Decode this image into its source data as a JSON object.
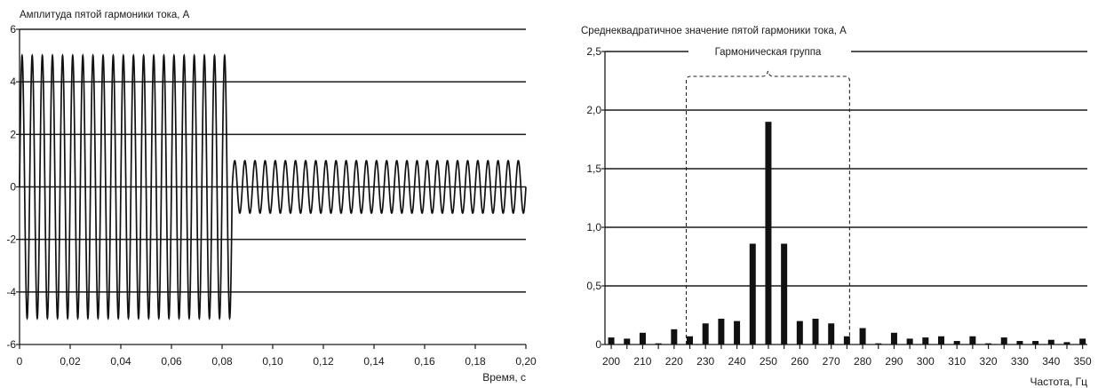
{
  "chart_data": [
    {
      "type": "line",
      "title": "Амплитуда пятой гармоники тока, А",
      "xlabel": "Время, с",
      "ylabel": "",
      "xlim": [
        0,
        0.2
      ],
      "ylim": [
        -6,
        6
      ],
      "x_ticks": [
        "0",
        "0,02",
        "0,04",
        "0,06",
        "0,08",
        "0,10",
        "0,12",
        "0,14",
        "0,16",
        "0,18",
        "0,20"
      ],
      "y_ticks": [
        "-6",
        "-4",
        "-2",
        "0",
        "2",
        "4",
        "6"
      ],
      "grid": "horizontal",
      "series": [
        {
          "frequency_hz": 250,
          "segments": [
            {
              "t_start": 0,
              "t_end": 0.084,
              "amplitude": 5
            },
            {
              "t_start": 0.084,
              "t_end": 0.2,
              "amplitude": 1
            }
          ]
        }
      ]
    },
    {
      "type": "bar",
      "title": "Среднеквадратичное значение пятой гармоники тока, А",
      "xlabel": "Частота, Гц",
      "ylabel": "",
      "ylim": [
        0,
        2.5
      ],
      "x_ticks": [
        "200",
        "210",
        "220",
        "230",
        "240",
        "250",
        "260",
        "270",
        "280",
        "290",
        "300",
        "310",
        "320",
        "330",
        "340",
        "350"
      ],
      "y_ticks": [
        "0",
        "0,5",
        "1,0",
        "1,5",
        "2,0",
        "2,5"
      ],
      "grid": "horizontal",
      "annotation": {
        "text": "Гармоническая группа",
        "x_range": [
          225,
          275
        ]
      },
      "categories": [
        200,
        205,
        210,
        215,
        220,
        225,
        230,
        235,
        240,
        245,
        250,
        255,
        260,
        265,
        270,
        275,
        280,
        285,
        290,
        295,
        300,
        305,
        310,
        315,
        320,
        325,
        330,
        335,
        340,
        345,
        350
      ],
      "values": [
        0.06,
        0.05,
        0.1,
        0.01,
        0.13,
        0.07,
        0.18,
        0.22,
        0.2,
        0.86,
        1.9,
        0.86,
        0.2,
        0.22,
        0.18,
        0.07,
        0.14,
        0.01,
        0.1,
        0.05,
        0.06,
        0.07,
        0.03,
        0.07,
        0.01,
        0.06,
        0.03,
        0.03,
        0.04,
        0.02,
        0.05
      ]
    }
  ]
}
